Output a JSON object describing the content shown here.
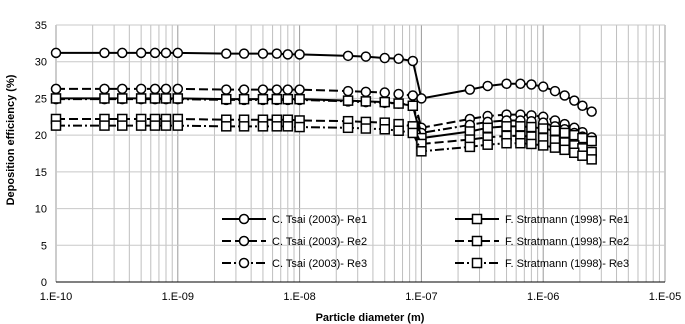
{
  "chart_data": {
    "type": "line",
    "title": "",
    "xlabel": "Particle diameter (m)",
    "ylabel": "Deposition efficiency (%)",
    "x_scale": "log",
    "xlim": [
      1e-10,
      1e-05
    ],
    "ylim": [
      0,
      35
    ],
    "x_tick_labels": [
      "1.E-10",
      "1.E-09",
      "1.E-08",
      "1.E-07",
      "1.E-06",
      "1.E-05"
    ],
    "y_tick_labels": [
      "0",
      "5",
      "10",
      "15",
      "20",
      "25",
      "30",
      "35"
    ],
    "grid": {
      "horizontal": "major",
      "vertical": "minor"
    },
    "legend_placement": "bottom-center",
    "series": [
      {
        "name": "C. Tsai (2003)- Re1",
        "color": "#000000",
        "line_style": "solid",
        "marker": "circle",
        "x": [
          1e-10,
          2.5e-10,
          3.5e-10,
          5e-10,
          6.5e-10,
          8e-10,
          1e-09,
          2.5e-09,
          3.5e-09,
          5e-09,
          6.5e-09,
          8e-09,
          1e-08,
          2.5e-08,
          3.5e-08,
          5e-08,
          6.5e-08,
          8.5e-08,
          1e-07,
          2.5e-07,
          3.5e-07,
          5e-07,
          6.5e-07,
          8e-07,
          1e-06,
          1.25e-06,
          1.5e-06,
          1.8e-06,
          2.1e-06,
          2.5e-06
        ],
        "y": [
          31.2,
          31.2,
          31.2,
          31.2,
          31.2,
          31.2,
          31.2,
          31.1,
          31.1,
          31.1,
          31.1,
          31.0,
          31.0,
          30.8,
          30.7,
          30.5,
          30.4,
          30.1,
          25.0,
          26.2,
          26.7,
          27.0,
          27.0,
          26.9,
          26.6,
          26.0,
          25.4,
          24.7,
          24.0,
          23.2
        ]
      },
      {
        "name": "C. Tsai (2003)- Re2",
        "color": "#000000",
        "line_style": "dashed",
        "marker": "circle",
        "x": [
          1e-10,
          2.5e-10,
          3.5e-10,
          5e-10,
          6.5e-10,
          8e-10,
          1e-09,
          2.5e-09,
          3.5e-09,
          5e-09,
          6.5e-09,
          8e-09,
          1e-08,
          2.5e-08,
          3.5e-08,
          5e-08,
          6.5e-08,
          8.5e-08,
          1e-07,
          2.5e-07,
          3.5e-07,
          5e-07,
          6.5e-07,
          8e-07,
          1e-06,
          1.25e-06,
          1.5e-06,
          1.8e-06,
          2.1e-06,
          2.5e-06
        ],
        "y": [
          26.3,
          26.3,
          26.3,
          26.3,
          26.3,
          26.3,
          26.3,
          26.2,
          26.2,
          26.2,
          26.2,
          26.2,
          26.2,
          26.0,
          25.9,
          25.8,
          25.6,
          25.4,
          21.0,
          22.2,
          22.6,
          22.8,
          22.8,
          22.7,
          22.5,
          22.0,
          21.5,
          21.0,
          20.4,
          19.7
        ]
      },
      {
        "name": "C. Tsai (2003)- Re3",
        "color": "#000000",
        "line_style": "dash-dot",
        "marker": "circle",
        "x": [
          1e-10,
          2.5e-10,
          3.5e-10,
          5e-10,
          6.5e-10,
          8e-10,
          1e-09,
          2.5e-09,
          3.5e-09,
          5e-09,
          6.5e-09,
          8e-09,
          1e-08,
          2.5e-08,
          3.5e-08,
          5e-08,
          6.5e-08,
          8.5e-08,
          1e-07,
          2.5e-07,
          3.5e-07,
          5e-07,
          6.5e-07,
          8e-07,
          1e-06,
          1.25e-06,
          1.5e-06,
          1.8e-06,
          2.1e-06,
          2.5e-06
        ],
        "y": [
          24.9,
          24.9,
          24.9,
          24.9,
          24.9,
          24.9,
          24.9,
          24.8,
          24.8,
          24.8,
          24.8,
          24.8,
          24.8,
          24.6,
          24.5,
          24.4,
          24.3,
          24.1,
          20.3,
          21.4,
          21.8,
          22.0,
          22.0,
          21.9,
          21.7,
          21.2,
          20.8,
          20.3,
          19.8,
          19.2
        ]
      },
      {
        "name": "F. Stratmann (1998)- Re1",
        "color": "#000000",
        "line_style": "solid",
        "marker": "square",
        "x": [
          1e-10,
          2.5e-10,
          3.5e-10,
          5e-10,
          6.5e-10,
          8e-10,
          1e-09,
          2.5e-09,
          3.5e-09,
          5e-09,
          6.5e-09,
          8e-09,
          1e-08,
          2.5e-08,
          3.5e-08,
          5e-08,
          6.5e-08,
          8.5e-08,
          1e-07,
          2.5e-07,
          3.5e-07,
          5e-07,
          6.5e-07,
          8e-07,
          1e-06,
          1.25e-06,
          1.5e-06,
          1.8e-06,
          2.1e-06,
          2.5e-06
        ],
        "y": [
          25.0,
          25.0,
          25.0,
          25.0,
          25.0,
          25.0,
          25.0,
          24.9,
          24.9,
          24.9,
          24.9,
          24.9,
          24.9,
          24.7,
          24.6,
          24.5,
          24.3,
          24.0,
          19.6,
          20.5,
          21.0,
          21.2,
          21.2,
          21.1,
          20.9,
          20.6,
          20.3,
          20.0,
          19.6,
          19.2
        ]
      },
      {
        "name": "F. Stratmann (1998)- Re2",
        "color": "#000000",
        "line_style": "dashed",
        "marker": "square",
        "x": [
          1e-10,
          2.5e-10,
          3.5e-10,
          5e-10,
          6.5e-10,
          8e-10,
          1e-09,
          2.5e-09,
          3.5e-09,
          5e-09,
          6.5e-09,
          8e-09,
          1e-08,
          2.5e-08,
          3.5e-08,
          5e-08,
          6.5e-08,
          8.5e-08,
          1e-07,
          2.5e-07,
          3.5e-07,
          5e-07,
          6.5e-07,
          8e-07,
          1e-06,
          1.25e-06,
          1.5e-06,
          1.8e-06,
          2.1e-06,
          2.5e-06
        ],
        "y": [
          22.2,
          22.2,
          22.2,
          22.2,
          22.2,
          22.2,
          22.2,
          22.1,
          22.1,
          22.1,
          22.1,
          22.1,
          22.0,
          21.9,
          21.8,
          21.7,
          21.5,
          21.2,
          18.8,
          19.4,
          19.7,
          19.9,
          19.9,
          19.8,
          19.6,
          19.3,
          19.0,
          18.6,
          18.2,
          17.7
        ]
      },
      {
        "name": "F. Stratmann (1998)- Re3",
        "color": "#000000",
        "line_style": "dash-dot",
        "marker": "square",
        "x": [
          1e-10,
          2.5e-10,
          3.5e-10,
          5e-10,
          6.5e-10,
          8e-10,
          1e-09,
          2.5e-09,
          3.5e-09,
          5e-09,
          6.5e-09,
          8e-09,
          1e-08,
          2.5e-08,
          3.5e-08,
          5e-08,
          6.5e-08,
          8.5e-08,
          1e-07,
          2.5e-07,
          3.5e-07,
          5e-07,
          6.5e-07,
          8e-07,
          1e-06,
          1.25e-06,
          1.5e-06,
          1.8e-06,
          2.1e-06,
          2.5e-06
        ],
        "y": [
          21.3,
          21.3,
          21.3,
          21.3,
          21.3,
          21.3,
          21.3,
          21.2,
          21.2,
          21.2,
          21.2,
          21.2,
          21.1,
          21.0,
          20.9,
          20.8,
          20.6,
          20.3,
          17.8,
          18.4,
          18.7,
          18.9,
          18.9,
          18.8,
          18.6,
          18.3,
          18.0,
          17.6,
          17.2,
          16.7
        ]
      }
    ]
  }
}
